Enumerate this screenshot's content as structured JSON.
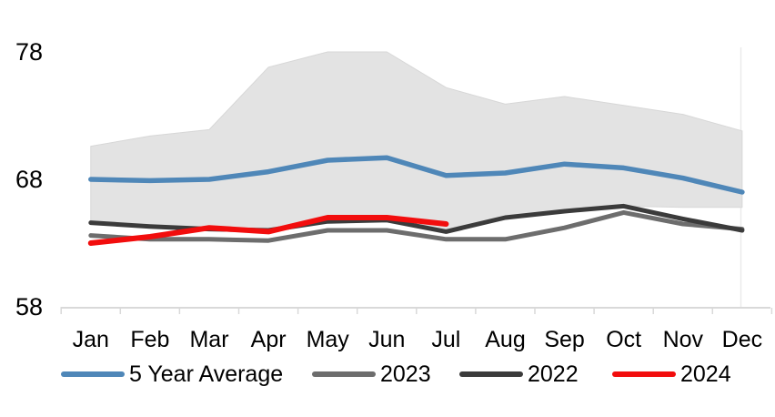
{
  "chart_data": {
    "type": "line",
    "title": "",
    "categories": [
      "Jan",
      "Feb",
      "Mar",
      "Apr",
      "May",
      "Jun",
      "Jul",
      "Aug",
      "Sep",
      "Oct",
      "Nov",
      "Dec"
    ],
    "y_axis": {
      "ticks": [
        78,
        68,
        58
      ],
      "min": 58,
      "max": 78
    },
    "axis_color": "#d9d9d9",
    "grid": "off",
    "legend_position": "bottom",
    "band": {
      "fill": "#e3e3e3",
      "edge": "#d7d7d7",
      "max": [
        70.6,
        71.4,
        71.9,
        76.8,
        78.0,
        78.0,
        75.2,
        73.9,
        74.5,
        73.8,
        73.1,
        71.8
      ],
      "min": [
        64.5,
        64.2,
        64.0,
        63.9,
        64.9,
        65.0,
        63.9,
        65.0,
        65.5,
        65.9,
        65.8,
        65.8
      ]
    },
    "series": [
      {
        "name": "5 Year Average",
        "color": "#4f87b8",
        "values": [
          68.0,
          67.9,
          68.0,
          68.6,
          69.5,
          69.7,
          68.3,
          68.5,
          69.2,
          68.9,
          68.1,
          67.0
        ]
      },
      {
        "name": "2023",
        "color": "#6d6d6d",
        "values": [
          63.6,
          63.3,
          63.3,
          63.2,
          64.0,
          64.0,
          63.3,
          63.3,
          64.2,
          65.4,
          64.5,
          64.1
        ]
      },
      {
        "name": "2022",
        "color": "#3b3b3b",
        "values": [
          64.6,
          64.3,
          64.1,
          64.0,
          64.7,
          64.8,
          63.9,
          65.0,
          65.5,
          65.9,
          64.9,
          64.0
        ]
      },
      {
        "name": "2024",
        "color": "#f20d0d",
        "values": [
          63.0,
          63.5,
          64.2,
          63.9,
          65.0,
          65.0,
          64.5,
          null,
          null,
          null,
          null,
          null
        ]
      }
    ],
    "legend": [
      {
        "label": "5 Year Average",
        "color": "#4f87b8"
      },
      {
        "label": "2023",
        "color": "#6d6d6d"
      },
      {
        "label": "2022",
        "color": "#3b3b3b"
      },
      {
        "label": "2024",
        "color": "#f20d0d"
      }
    ]
  }
}
